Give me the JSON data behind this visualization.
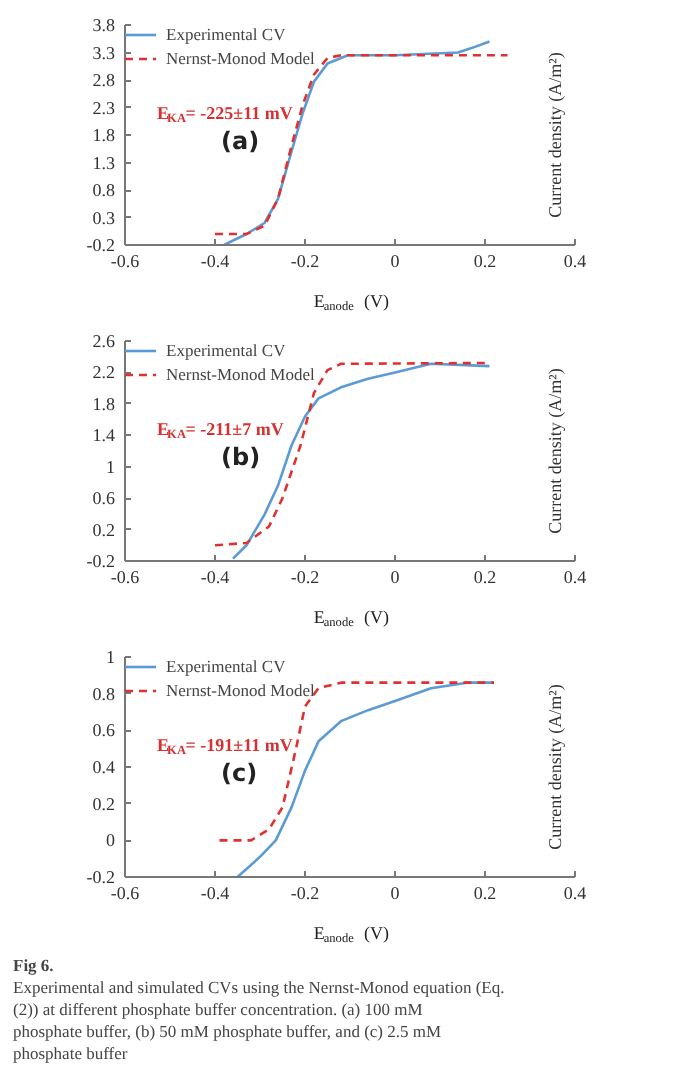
{
  "chart_data": [
    {
      "type": "line",
      "xlabel": "E$_{anode}$ (V)",
      "ylabel": "Current density (A/m²)",
      "annotations": [
        "(a)",
        "E$_{KA}$= -225±11 mV"
      ],
      "xlim": [
        -0.6,
        0.4
      ],
      "xticks": [
        -0.6,
        -0.4,
        -0.2,
        0,
        0.2,
        0.4
      ],
      "ylim": [
        -0.2,
        3.8
      ],
      "yticks": [
        -0.2,
        0.3,
        0.8,
        1.3,
        1.8,
        2.3,
        2.8,
        3.3,
        3.8
      ],
      "legend": "top left",
      "grid": false,
      "series": [
        {
          "name": "Experimental CV",
          "color": "#5b9bd5",
          "line_style": "solid",
          "x": [
            -0.38,
            -0.33,
            -0.29,
            -0.26,
            -0.23,
            -0.205,
            -0.18,
            -0.15,
            -0.105,
            0,
            0.14,
            0.17,
            0.21
          ],
          "values": [
            -0.2,
            0,
            0.2,
            0.64,
            1.5,
            2.2,
            2.77,
            3.1,
            3.25,
            3.25,
            3.3,
            3.38,
            3.5
          ]
        },
        {
          "name": "Nernst-Monod Model",
          "color": "#e03030",
          "line_style": "dashed",
          "x": [
            -0.4,
            -0.33,
            -0.29,
            -0.26,
            -0.23,
            -0.205,
            -0.18,
            -0.15,
            -0.12,
            0.25
          ],
          "values": [
            0,
            0,
            0.15,
            0.64,
            1.6,
            2.35,
            2.9,
            3.2,
            3.25,
            3.25
          ]
        }
      ]
    },
    {
      "type": "line",
      "xlabel": "E$_{anode}$ (V)",
      "ylabel": "Current density (A/m²)",
      "annotations": [
        "(b)",
        "E$_{KA}$= -211±7 mV"
      ],
      "xlim": [
        -0.6,
        0.4
      ],
      "xticks": [
        -0.6,
        -0.4,
        -0.2,
        0,
        0.2,
        0.4
      ],
      "ylim": [
        -0.2,
        2.6
      ],
      "yticks": [
        -0.2,
        0.2,
        0.6,
        1,
        1.4,
        1.8,
        2.2,
        2.6
      ],
      "legend": "top left",
      "grid": false,
      "series": [
        {
          "name": "Experimental CV",
          "color": "#5b9bd5",
          "line_style": "solid",
          "x": [
            -0.36,
            -0.33,
            -0.29,
            -0.26,
            -0.23,
            -0.2,
            -0.17,
            -0.12,
            -0.06,
            0,
            0.08,
            0.21
          ],
          "values": [
            -0.17,
            0,
            0.39,
            0.76,
            1.27,
            1.64,
            1.87,
            2.01,
            2.12,
            2.2,
            2.31,
            2.28
          ]
        },
        {
          "name": "Nernst-Monod Model",
          "color": "#e03030",
          "line_style": "dashed",
          "x": [
            -0.4,
            -0.33,
            -0.28,
            -0.25,
            -0.21,
            -0.18,
            -0.15,
            -0.12,
            0.21
          ],
          "values": [
            0,
            0.03,
            0.24,
            0.6,
            1.27,
            1.94,
            2.23,
            2.31,
            2.32
          ]
        }
      ]
    },
    {
      "type": "line",
      "xlabel": "E$_{anode}$ (V)",
      "ylabel": "Current density (A/m²)",
      "annotations": [
        "(c)",
        "E$_{KA}$= -191±11 mV"
      ],
      "xlim": [
        -0.6,
        0.4
      ],
      "xticks": [
        -0.6,
        -0.4,
        -0.2,
        0,
        0.2,
        0.4
      ],
      "ylim": [
        -0.2,
        1
      ],
      "yticks": [
        -0.2,
        0,
        0.2,
        0.4,
        0.6,
        0.8,
        1
      ],
      "legend": "top left",
      "grid": false,
      "series": [
        {
          "name": "Experimental CV",
          "color": "#5b9bd5",
          "line_style": "solid",
          "x": [
            -0.35,
            -0.3,
            -0.265,
            -0.23,
            -0.2,
            -0.17,
            -0.12,
            -0.06,
            0,
            0.08,
            0.16,
            0.22
          ],
          "values": [
            -0.2,
            -0.09,
            0,
            0.18,
            0.38,
            0.54,
            0.65,
            0.71,
            0.76,
            0.83,
            0.86,
            0.86
          ]
        },
        {
          "name": "Nernst-Monod Model",
          "color": "#e03030",
          "line_style": "dashed",
          "x": [
            -0.39,
            -0.32,
            -0.28,
            -0.25,
            -0.22,
            -0.2,
            -0.17,
            -0.12,
            0.22
          ],
          "values": [
            0,
            0,
            0.06,
            0.18,
            0.5,
            0.73,
            0.83,
            0.86,
            0.86
          ]
        }
      ]
    },
    {
      "type": "other",
      "title": "Fig 6.",
      "annotations": [
        "Experimental and simulated CVs using the Nernst-Monod equation (Eq. (2)) at different phosphate buffer concentration. (a) 100 mM phosphate buffer, (b) 50 mM phosphate buffer, and (c) 2.5 mM phosphate buffer"
      ]
    }
  ]
}
